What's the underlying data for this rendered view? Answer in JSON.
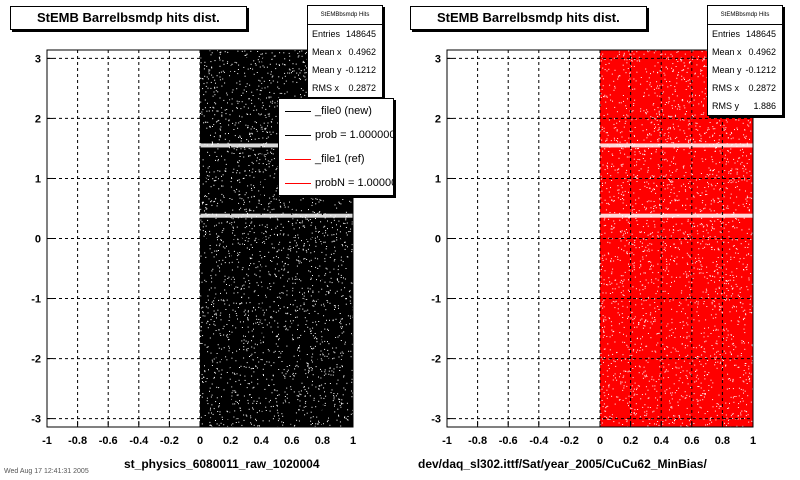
{
  "chart_data": [
    {
      "type": "scatter",
      "title": "StEMB Barrelbsmdp hits dist.",
      "xlabel": "st_physics_6080011_raw_1020004",
      "ylabel": "",
      "xlim": [
        -1,
        1
      ],
      "ylim": [
        -3.14,
        3.14
      ],
      "xticks": [
        "-1",
        "-0.8",
        "-0.6",
        "-0.4",
        "-0.2",
        "0",
        "0.2",
        "0.4",
        "0.6",
        "0.8",
        "1"
      ],
      "yticks": [
        "-3",
        "-2",
        "-1",
        "0",
        "1",
        "2",
        "3"
      ],
      "grid": true,
      "marker_color": "#000000",
      "filled_region": {
        "x": [
          0,
          1
        ],
        "y": [
          -3.14,
          3.14
        ]
      },
      "gaps_y": [
        1.55,
        0.38
      ],
      "stats": {
        "title": "StEMBbsmdp Hits",
        "rows": [
          {
            "label": "Entries",
            "value": "148645"
          },
          {
            "label": "Mean x",
            "value": "0.4962"
          },
          {
            "label": "Mean y",
            "value": "-0.1212"
          },
          {
            "label": "RMS x",
            "value": "0.2872"
          }
        ]
      },
      "legend": {
        "placement": "top-right",
        "entries": [
          {
            "label": "_file0 (new)",
            "color": "#000000"
          },
          {
            "label": "prob = 1.000000",
            "color": "#000000"
          },
          {
            "label": "_file1 (ref)",
            "color": "#ff0000"
          },
          {
            "label": "probN = 1.000000",
            "color": "#ff0000"
          }
        ]
      }
    },
    {
      "type": "scatter",
      "title": "StEMB Barrelbsmdp hits dist.",
      "xlabel": "dev/daq_sl302.ittf/Sat/year_2005/CuCu62_MinBias/",
      "ylabel": "",
      "xlim": [
        -1,
        1
      ],
      "ylim": [
        -3.14,
        3.14
      ],
      "xticks": [
        "-1",
        "-0.8",
        "-0.6",
        "-0.4",
        "-0.2",
        "0",
        "0.2",
        "0.4",
        "0.6",
        "0.8",
        "1"
      ],
      "yticks": [
        "-3",
        "-2",
        "-1",
        "0",
        "1",
        "2",
        "3"
      ],
      "grid": true,
      "marker_color": "#ff0000",
      "filled_region": {
        "x": [
          0,
          1
        ],
        "y": [
          -3.14,
          3.14
        ]
      },
      "gaps_y": [
        1.55,
        0.38
      ],
      "stats": {
        "title": "StEMBbsmdp Hits",
        "rows": [
          {
            "label": "Entries",
            "value": "148645"
          },
          {
            "label": "Mean x",
            "value": "0.4962"
          },
          {
            "label": "Mean y",
            "value": "-0.1212"
          },
          {
            "label": "RMS x",
            "value": "0.2872"
          },
          {
            "label": "RMS y",
            "value": "1.886"
          }
        ]
      }
    }
  ],
  "footer": {
    "text": "Wed Aug 17 12:41:31 2005"
  }
}
